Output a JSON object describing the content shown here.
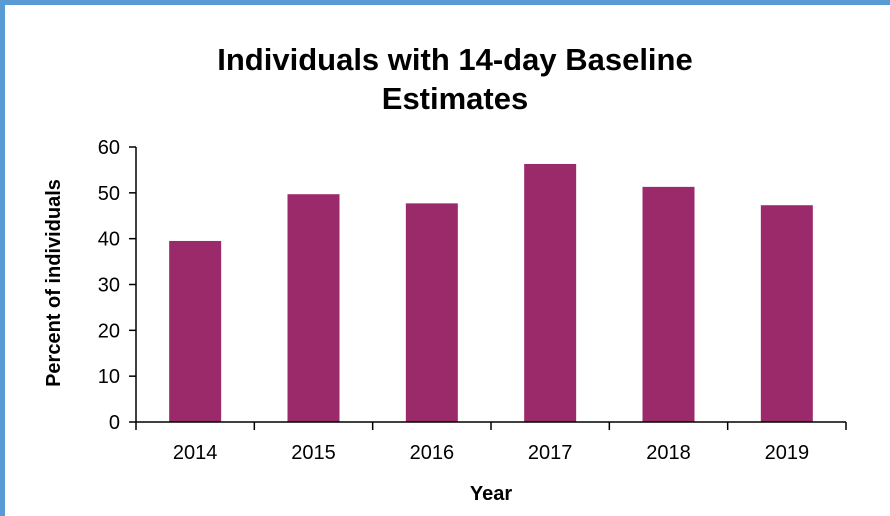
{
  "chart_data": {
    "type": "bar",
    "title_lines": [
      "Individuals with 14-day Baseline",
      "Estimates"
    ],
    "categories": [
      "2014",
      "2015",
      "2016",
      "2017",
      "2018",
      "2019"
    ],
    "values": [
      39.5,
      49.7,
      47.7,
      56.3,
      51.3,
      47.3
    ],
    "xlabel": "Year",
    "ylabel": "Percent of individuals",
    "ylim": [
      0,
      60
    ],
    "yticks": [
      "0",
      "10",
      "20",
      "30",
      "40",
      "50",
      "60"
    ],
    "bar_color": "#9b2a6b",
    "grid": false,
    "legend": "none"
  },
  "frame_color": "#5b9bd5"
}
